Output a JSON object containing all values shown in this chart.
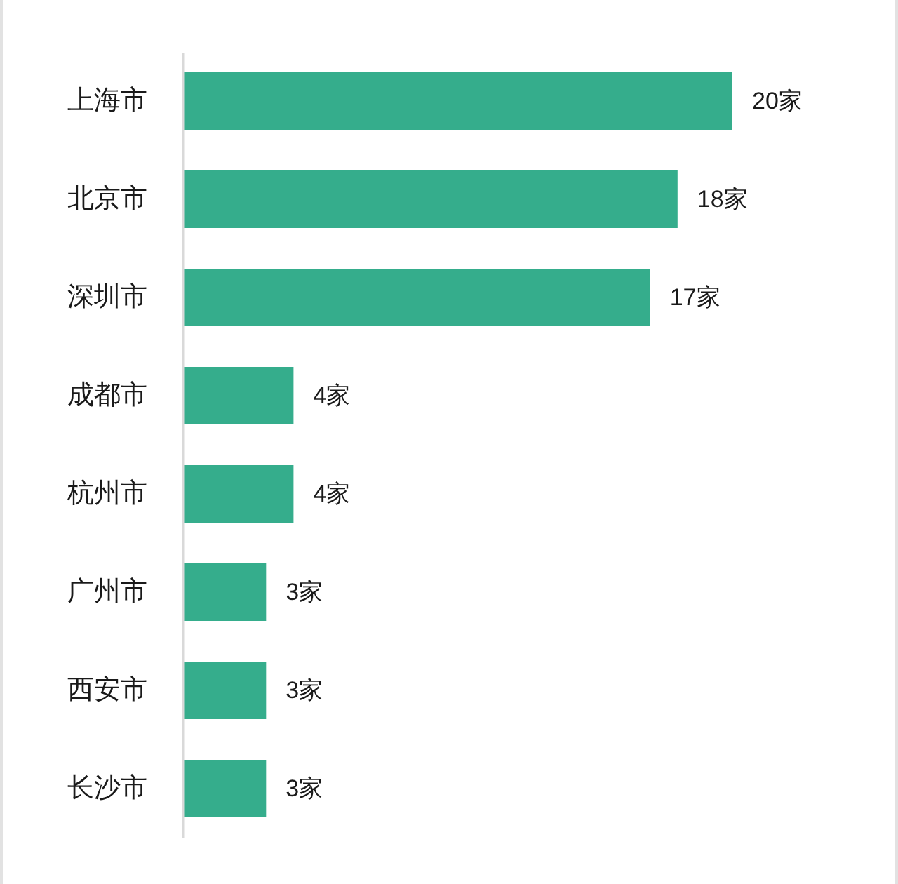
{
  "chart_data": {
    "type": "bar",
    "orientation": "horizontal",
    "categories": [
      "上海市",
      "北京市",
      "深圳市",
      "成都市",
      "杭州市",
      "广州市",
      "西安市",
      "长沙市"
    ],
    "values": [
      20,
      18,
      17,
      4,
      4,
      3,
      3,
      3
    ],
    "value_labels": [
      "20家",
      "18家",
      "17家",
      "4家",
      "4家",
      "3家",
      "3家",
      "3家"
    ],
    "color": "#35ad8c"
  }
}
